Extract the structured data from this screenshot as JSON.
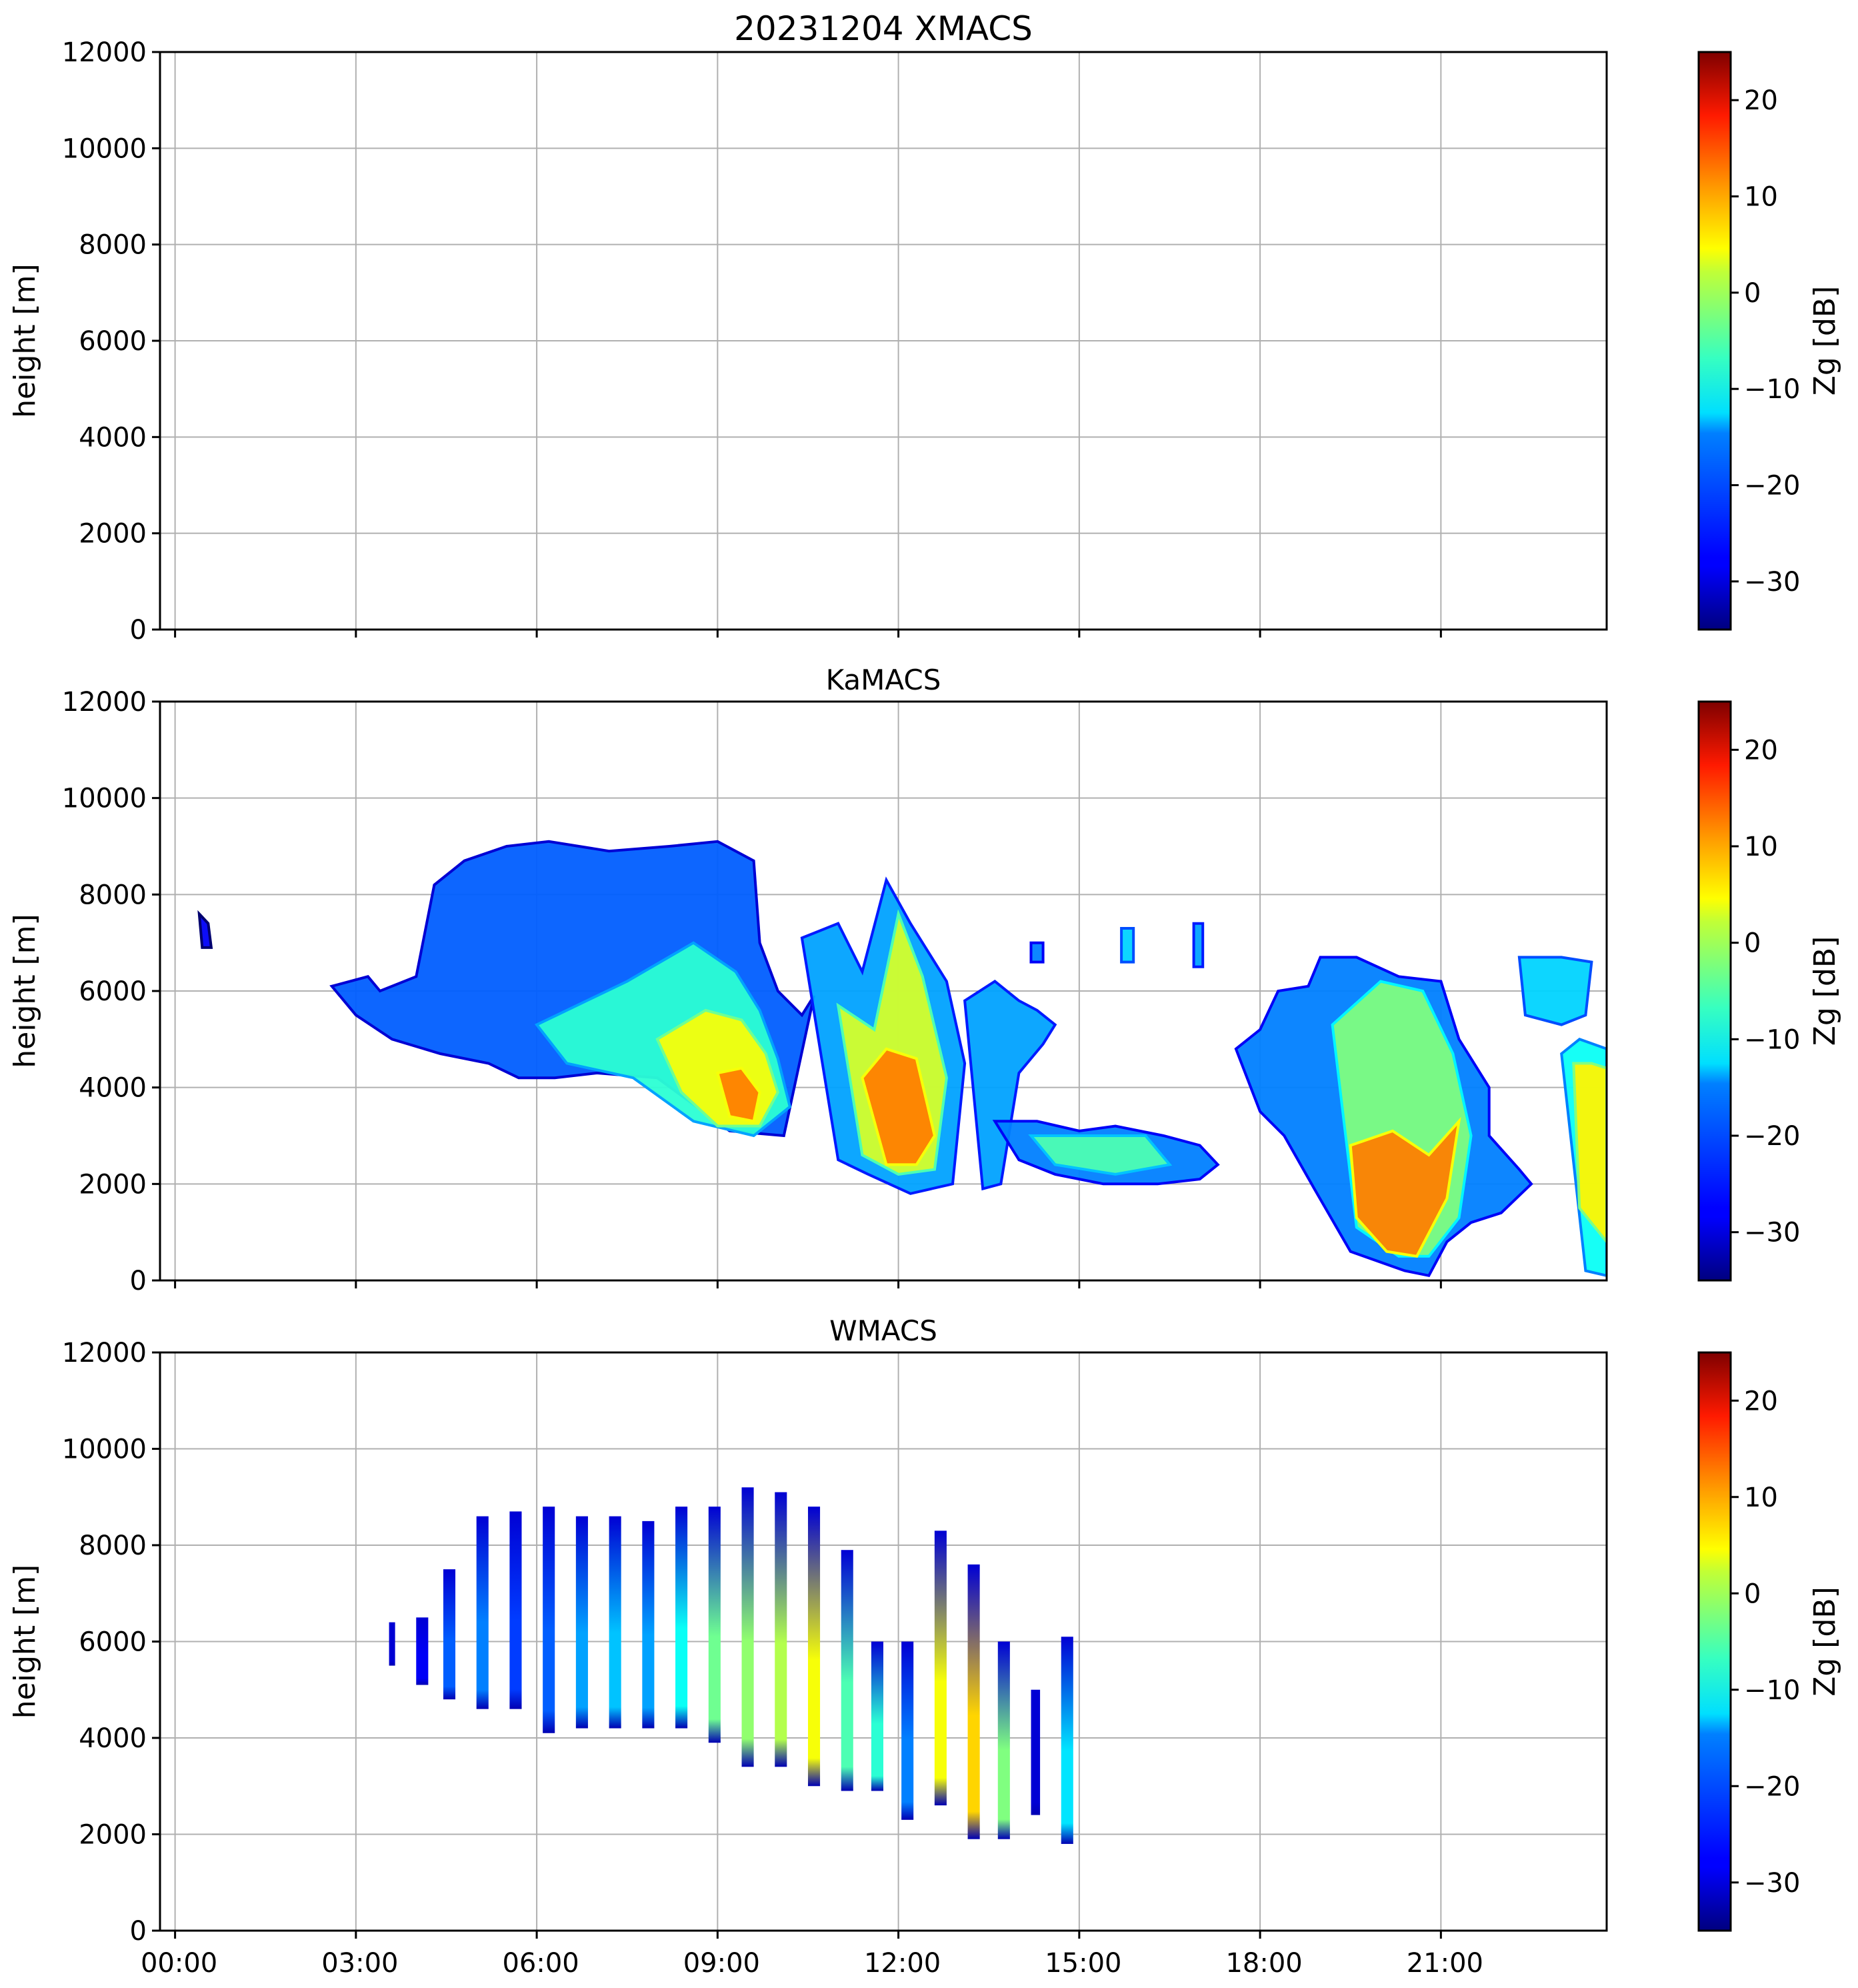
{
  "chart_data": [
    {
      "type": "heatmap",
      "title": "20231204 XMACS",
      "xlabel": "",
      "ylabel": "height [m]",
      "xlim_hours": [
        -0.25,
        23.75
      ],
      "ylim": [
        0,
        12000
      ],
      "y_ticks": [
        "0",
        "2000",
        "4000",
        "6000",
        "8000",
        "10000",
        "12000"
      ],
      "x_tick_hours": [
        0,
        3,
        6,
        9,
        12,
        15,
        18,
        21
      ],
      "grid": true,
      "colorbar": {
        "label": "Zg [dB]",
        "range": [
          -35,
          25
        ],
        "ticks": [
          "−30",
          "−20",
          "−10",
          "0",
          "10",
          "20"
        ],
        "colormap": "jet"
      },
      "regions": []
    },
    {
      "type": "heatmap",
      "title": "KaMACS",
      "xlabel": "",
      "ylabel": "height [m]",
      "xlim_hours": [
        -0.25,
        23.75
      ],
      "ylim": [
        0,
        12000
      ],
      "y_ticks": [
        "0",
        "2000",
        "4000",
        "6000",
        "8000",
        "10000",
        "12000"
      ],
      "x_tick_hours": [
        0,
        3,
        6,
        9,
        12,
        15,
        18,
        21
      ],
      "grid": true,
      "colorbar": {
        "label": "Zg [dB]",
        "range": [
          -35,
          25
        ],
        "ticks": [
          "−30",
          "−20",
          "−10",
          "0",
          "10",
          "20"
        ],
        "colormap": "jet"
      },
      "regions": [
        {
          "name": "main-cloud",
          "x": [
            2.6,
            3.2,
            3.4,
            4.0,
            4.3,
            4.8,
            5.5,
            6.2,
            7.2,
            8.2,
            9.0,
            9.6,
            9.7,
            10.0,
            10.4,
            10.6,
            10.1,
            9.2,
            8.0,
            7.0,
            6.3,
            5.7,
            5.2,
            4.4,
            3.6,
            3.0,
            2.6
          ],
          "y": [
            6100,
            6300,
            6000,
            6300,
            8200,
            8700,
            9000,
            9100,
            8900,
            9000,
            9100,
            8700,
            7000,
            6000,
            5500,
            5900,
            3000,
            3100,
            4200,
            4300,
            4200,
            4200,
            4500,
            4700,
            5000,
            5500,
            6100
          ],
          "dbz": -22
        },
        {
          "name": "main-core",
          "x": [
            6.0,
            7.5,
            8.6,
            9.3,
            9.7,
            10.0,
            10.2,
            9.6,
            8.6,
            7.6,
            6.5,
            6.0
          ],
          "y": [
            5300,
            6200,
            7000,
            6400,
            5600,
            4600,
            3600,
            3000,
            3300,
            4200,
            4500,
            5300
          ],
          "dbz": -10
        },
        {
          "name": "main-yellow",
          "x": [
            8.0,
            8.8,
            9.4,
            9.8,
            10.0,
            9.7,
            9.0,
            8.4,
            8.0
          ],
          "y": [
            5000,
            5600,
            5400,
            4700,
            3900,
            3200,
            3200,
            3900,
            5000
          ],
          "dbz": 2
        },
        {
          "name": "main-orange",
          "x": [
            9.0,
            9.4,
            9.7,
            9.6,
            9.2,
            9.0
          ],
          "y": [
            4300,
            4400,
            3900,
            3300,
            3400,
            4300
          ],
          "dbz": 10
        },
        {
          "name": "cell-11h",
          "x": [
            10.4,
            11.0,
            11.4,
            11.8,
            12.2,
            12.8,
            13.1,
            12.9,
            12.2,
            11.5,
            11.0,
            10.4
          ],
          "y": [
            7100,
            7400,
            6400,
            8300,
            7400,
            6200,
            4500,
            2000,
            1800,
            2200,
            2500,
            7100
          ],
          "dbz": -18
        },
        {
          "name": "cell-11h-core",
          "x": [
            11.0,
            11.6,
            12.0,
            12.4,
            12.8,
            12.6,
            12.0,
            11.4,
            11.0
          ],
          "y": [
            5700,
            5200,
            7600,
            6300,
            4200,
            2300,
            2200,
            2600,
            5700
          ],
          "dbz": 0
        },
        {
          "name": "cell-11h-hot",
          "x": [
            11.4,
            11.8,
            12.3,
            12.6,
            12.3,
            11.8,
            11.4
          ],
          "y": [
            4200,
            4800,
            4600,
            3000,
            2400,
            2400,
            4200
          ],
          "dbz": 10
        },
        {
          "name": "cell-13h",
          "x": [
            13.1,
            13.6,
            14.0,
            14.3,
            14.6,
            14.4,
            14.0,
            13.7,
            13.4,
            13.1
          ],
          "y": [
            5800,
            6200,
            5800,
            5600,
            5300,
            4900,
            4300,
            2000,
            1900,
            5800
          ],
          "dbz": -18
        },
        {
          "name": "layer-14h",
          "x": [
            13.6,
            14.3,
            15.0,
            15.6,
            16.4,
            17.0,
            17.3,
            17.0,
            16.3,
            15.4,
            14.6,
            14.0,
            13.6
          ],
          "y": [
            3300,
            3300,
            3100,
            3200,
            3000,
            2800,
            2400,
            2100,
            2000,
            2000,
            2200,
            2500,
            3300
          ],
          "dbz": -20
        },
        {
          "name": "layer-14h-core",
          "x": [
            14.2,
            15.0,
            16.1,
            16.5,
            15.6,
            14.6,
            14.2
          ],
          "y": [
            3000,
            3000,
            3000,
            2400,
            2200,
            2400,
            3000
          ],
          "dbz": -8
        },
        {
          "name": "cloud-19h",
          "x": [
            17.6,
            18.0,
            18.3,
            18.8,
            19.0,
            19.6,
            20.3,
            21.0,
            21.3,
            21.8,
            21.8,
            22.3,
            22.5,
            22.0,
            21.5,
            21.1,
            20.8,
            20.4,
            19.5,
            18.9,
            18.4,
            18.0,
            17.6
          ],
          "y": [
            4800,
            5200,
            6000,
            6100,
            6700,
            6700,
            6300,
            6200,
            5000,
            4000,
            3000,
            2300,
            2000,
            1400,
            1200,
            800,
            100,
            200,
            600,
            1900,
            3000,
            3500,
            4800
          ],
          "dbz": -20
        },
        {
          "name": "cloud-19h-core",
          "x": [
            19.2,
            20.0,
            20.7,
            21.2,
            21.5,
            21.3,
            20.8,
            20.3,
            19.6,
            19.2
          ],
          "y": [
            5300,
            6200,
            6000,
            4700,
            3000,
            1300,
            500,
            500,
            1100,
            5300
          ],
          "dbz": -5
        },
        {
          "name": "cloud-19h-hot",
          "x": [
            19.5,
            20.2,
            20.8,
            21.3,
            21.1,
            20.6,
            20.1,
            19.6,
            19.5
          ],
          "y": [
            2800,
            3100,
            2600,
            3300,
            1700,
            500,
            600,
            1300,
            2800
          ],
          "dbz": 10
        },
        {
          "name": "cloud-22h-upper",
          "x": [
            22.3,
            23.0,
            23.5,
            23.4,
            23.0,
            22.4,
            22.3
          ],
          "y": [
            6700,
            6700,
            6600,
            5500,
            5300,
            5500,
            6700
          ],
          "dbz": -15
        },
        {
          "name": "cloud-23h",
          "x": [
            23.0,
            23.3,
            23.75,
            23.75,
            23.4,
            23.0
          ],
          "y": [
            4700,
            5000,
            4800,
            100,
            200,
            4700
          ],
          "dbz": -12
        },
        {
          "name": "cloud-23h-core",
          "x": [
            23.2,
            23.5,
            23.75,
            23.75,
            23.3,
            23.2
          ],
          "y": [
            4500,
            4500,
            4400,
            800,
            1500,
            4500
          ],
          "dbz": 3
        },
        {
          "name": "blob-7h",
          "x": [
            0.4,
            0.55,
            0.6,
            0.45,
            0.4
          ],
          "y": [
            7600,
            7400,
            6900,
            6900,
            7600
          ],
          "dbz": -28
        },
        {
          "name": "blobs-15h",
          "x": [
            14.2,
            14.4,
            14.4,
            14.2
          ],
          "y": [
            7000,
            7000,
            6600,
            6600
          ],
          "dbz": -20
        },
        {
          "name": "blob-16h",
          "x": [
            15.7,
            15.9,
            15.9,
            15.7
          ],
          "y": [
            7300,
            7300,
            6600,
            6600
          ],
          "dbz": -15
        },
        {
          "name": "blob-17h",
          "x": [
            16.9,
            17.05,
            17.05,
            16.9
          ],
          "y": [
            7400,
            7400,
            6500,
            6500
          ],
          "dbz": -18
        }
      ]
    },
    {
      "type": "heatmap",
      "title": "WMACS",
      "xlabel": "",
      "ylabel": "height [m]",
      "xlim_hours": [
        -0.25,
        23.75
      ],
      "ylim": [
        0,
        12000
      ],
      "y_ticks": [
        "0",
        "2000",
        "4000",
        "6000",
        "8000",
        "10000",
        "12000"
      ],
      "x_tick_labels": [
        "00:00",
        "03:00",
        "06:00",
        "09:00",
        "12:00",
        "15:00",
        "18:00",
        "21:00"
      ],
      "x_tick_hours": [
        0,
        3,
        6,
        9,
        12,
        15,
        18,
        21
      ],
      "grid": true,
      "colorbar": {
        "label": "Zg [dB]",
        "range": [
          -35,
          25
        ],
        "ticks": [
          "−30",
          "−20",
          "−10",
          "0",
          "10",
          "20"
        ],
        "colormap": "jet"
      },
      "strips": [
        {
          "t0": 3.55,
          "t1": 3.65,
          "top": 6400,
          "bottom": 5500,
          "dbz": -30
        },
        {
          "t0": 4.0,
          "t1": 4.2,
          "top": 6500,
          "bottom": 5100,
          "dbz": -28
        },
        {
          "t0": 4.45,
          "t1": 4.65,
          "top": 7500,
          "bottom": 4800,
          "dbz": -22
        },
        {
          "t0": 5.0,
          "t1": 5.2,
          "top": 8600,
          "bottom": 4600,
          "dbz": -20
        },
        {
          "t0": 5.55,
          "t1": 5.75,
          "top": 8700,
          "bottom": 4600,
          "dbz": -24
        },
        {
          "t0": 6.1,
          "t1": 6.3,
          "top": 8800,
          "bottom": 4100,
          "dbz": -22
        },
        {
          "t0": 6.65,
          "t1": 6.85,
          "top": 8600,
          "bottom": 4200,
          "dbz": -18
        },
        {
          "t0": 7.2,
          "t1": 7.4,
          "top": 8600,
          "bottom": 4200,
          "dbz": -16
        },
        {
          "t0": 7.75,
          "t1": 7.95,
          "top": 8500,
          "bottom": 4200,
          "dbz": -18
        },
        {
          "t0": 8.3,
          "t1": 8.5,
          "top": 8800,
          "bottom": 4200,
          "dbz": -12
        },
        {
          "t0": 8.85,
          "t1": 9.05,
          "top": 8800,
          "bottom": 3900,
          "dbz": -6
        },
        {
          "t0": 9.4,
          "t1": 9.6,
          "top": 9200,
          "bottom": 3400,
          "dbz": -4
        },
        {
          "t0": 9.95,
          "t1": 10.15,
          "top": 9100,
          "bottom": 3400,
          "dbz": -2
        },
        {
          "t0": 10.5,
          "t1": 10.7,
          "top": 8800,
          "bottom": 3000,
          "dbz": 2
        },
        {
          "t0": 11.05,
          "t1": 11.25,
          "top": 7900,
          "bottom": 2900,
          "dbz": -8
        },
        {
          "t0": 11.55,
          "t1": 11.75,
          "top": 6000,
          "bottom": 2900,
          "dbz": -10
        },
        {
          "t0": 12.05,
          "t1": 12.25,
          "top": 6000,
          "bottom": 2300,
          "dbz": -20
        },
        {
          "t0": 12.6,
          "t1": 12.8,
          "top": 8300,
          "bottom": 2600,
          "dbz": 2
        },
        {
          "t0": 13.15,
          "t1": 13.35,
          "top": 7600,
          "bottom": 1900,
          "dbz": 5
        },
        {
          "t0": 13.65,
          "t1": 13.85,
          "top": 6000,
          "bottom": 1900,
          "dbz": -5
        },
        {
          "t0": 14.2,
          "t1": 14.35,
          "top": 5000,
          "bottom": 2400,
          "dbz": -30
        },
        {
          "t0": 14.7,
          "t1": 14.9,
          "top": 6100,
          "bottom": 1800,
          "dbz": -14
        }
      ]
    }
  ],
  "x_axis": {
    "tick_labels": [
      "00:00",
      "03:00",
      "06:00",
      "09:00",
      "12:00",
      "15:00",
      "18:00",
      "21:00"
    ]
  }
}
